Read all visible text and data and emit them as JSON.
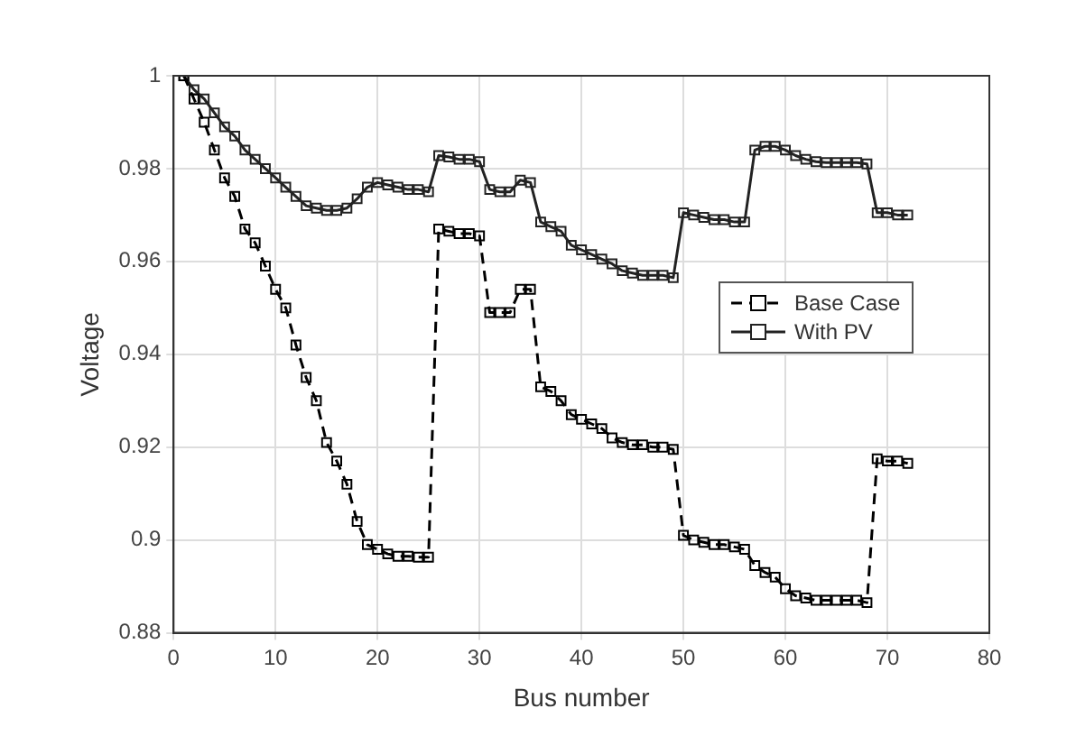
{
  "chart_data": {
    "type": "line",
    "xlabel": "Bus number",
    "ylabel": "Voltage",
    "x": [
      1,
      2,
      3,
      4,
      5,
      6,
      7,
      8,
      9,
      10,
      11,
      12,
      13,
      14,
      15,
      16,
      17,
      18,
      19,
      20,
      21,
      22,
      23,
      24,
      25,
      26,
      27,
      28,
      29,
      30,
      31,
      32,
      33,
      34,
      35,
      36,
      37,
      38,
      39,
      40,
      41,
      42,
      43,
      44,
      45,
      46,
      47,
      48,
      49,
      50,
      51,
      52,
      53,
      54,
      55,
      56,
      57,
      58,
      59,
      60,
      61,
      62,
      63,
      64,
      65,
      66,
      67,
      68,
      69,
      70,
      71,
      72
    ],
    "series": [
      {
        "name": "Base Case",
        "color": "#000000",
        "line_style": "dashed",
        "values": [
          1.0,
          0.995,
          0.99,
          0.984,
          0.978,
          0.974,
          0.967,
          0.964,
          0.959,
          0.954,
          0.95,
          0.942,
          0.935,
          0.93,
          0.921,
          0.917,
          0.912,
          0.904,
          0.899,
          0.898,
          0.897,
          0.8965,
          0.8965,
          0.8963,
          0.8963,
          0.967,
          0.9665,
          0.966,
          0.966,
          0.9655,
          0.949,
          0.949,
          0.949,
          0.954,
          0.954,
          0.933,
          0.932,
          0.93,
          0.927,
          0.926,
          0.925,
          0.924,
          0.922,
          0.921,
          0.9205,
          0.9205,
          0.92,
          0.92,
          0.9195,
          0.901,
          0.9,
          0.8995,
          0.899,
          0.899,
          0.8985,
          0.898,
          0.8945,
          0.893,
          0.892,
          0.8895,
          0.888,
          0.8875,
          0.887,
          0.887,
          0.887,
          0.887,
          0.887,
          0.8865,
          0.9175,
          0.917,
          0.917,
          0.9165
        ]
      },
      {
        "name": "With PV",
        "color": "#222222",
        "line_style": "solid",
        "values": [
          1.0,
          0.997,
          0.995,
          0.992,
          0.989,
          0.987,
          0.984,
          0.982,
          0.98,
          0.978,
          0.976,
          0.974,
          0.972,
          0.9715,
          0.971,
          0.971,
          0.9715,
          0.9735,
          0.976,
          0.977,
          0.9765,
          0.976,
          0.9755,
          0.9755,
          0.975,
          0.9828,
          0.9825,
          0.982,
          0.982,
          0.9815,
          0.9755,
          0.975,
          0.975,
          0.9775,
          0.977,
          0.9685,
          0.9675,
          0.9665,
          0.9635,
          0.9625,
          0.9615,
          0.9605,
          0.9595,
          0.958,
          0.9575,
          0.957,
          0.957,
          0.957,
          0.9565,
          0.9705,
          0.97,
          0.9695,
          0.969,
          0.969,
          0.9685,
          0.9685,
          0.984,
          0.9848,
          0.9848,
          0.984,
          0.9828,
          0.982,
          0.9815,
          0.9813,
          0.9813,
          0.9813,
          0.9813,
          0.981,
          0.9705,
          0.9705,
          0.97,
          0.97
        ]
      }
    ],
    "xlim": [
      0,
      80
    ],
    "xticks": [
      0,
      10,
      20,
      30,
      40,
      50,
      60,
      70,
      80
    ],
    "ylim": [
      0.88,
      1
    ],
    "yticks": [
      0.88,
      0.9,
      0.92,
      0.94,
      0.96,
      0.98,
      1
    ],
    "grid": true,
    "legend": "right",
    "marker": "square"
  }
}
